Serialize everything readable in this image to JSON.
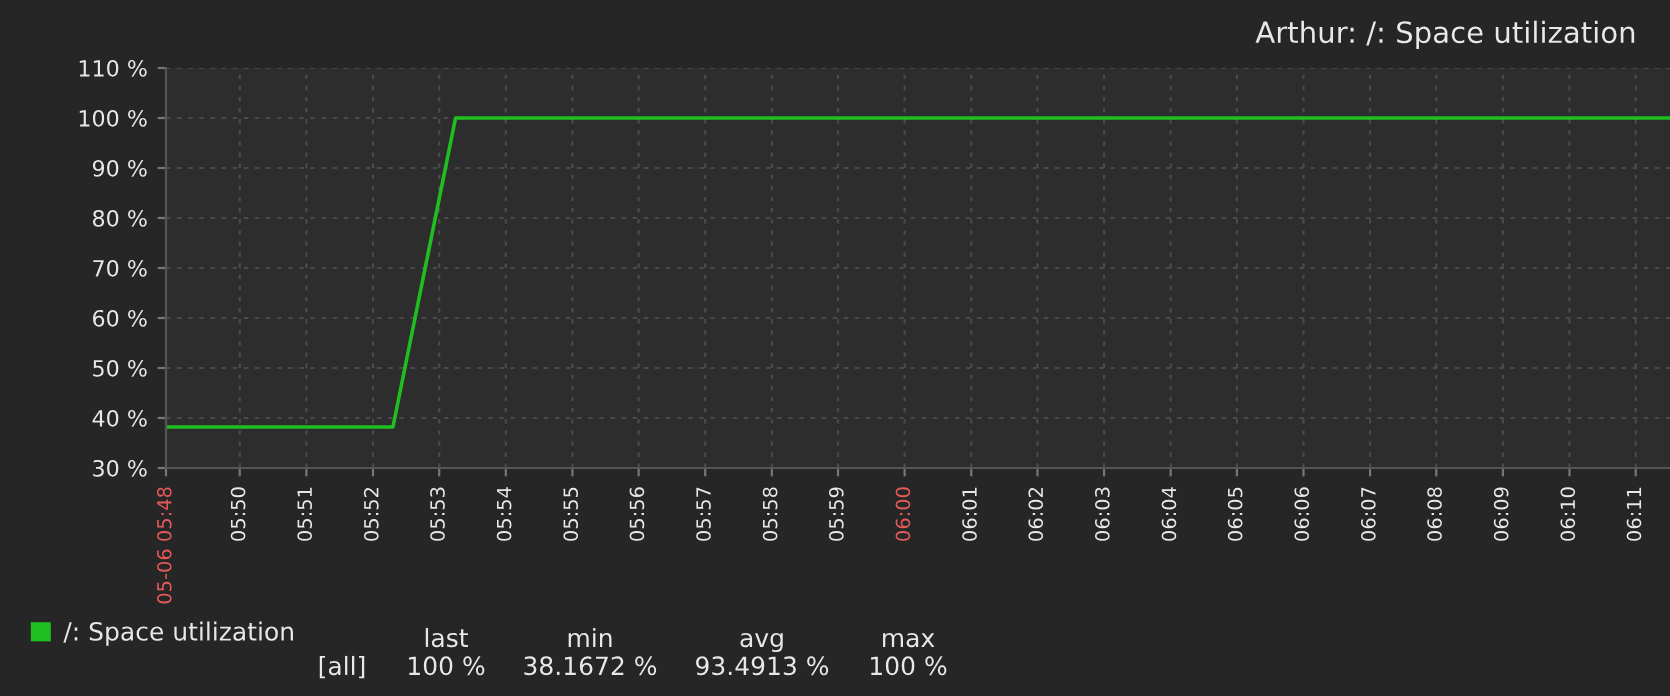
{
  "chart_data": {
    "type": "line",
    "title": "Arthur: /: Space utilization",
    "x": [
      5.8148,
      5.8717,
      5.8874,
      6.1919
    ],
    "series": [
      {
        "name": "/: Space utilization",
        "color": "#1fbf1f",
        "values": [
          38.2,
          38.2,
          100,
          100
        ]
      }
    ],
    "xlim": [
      5.8148,
      6.1919
    ],
    "xticks": [
      {
        "value": 5.8148,
        "label": "05-06 05:48"
      },
      {
        "value": 5.8333,
        "label": "05:50"
      },
      {
        "value": 5.85,
        "label": "05:51"
      },
      {
        "value": 5.8667,
        "label": "05:52"
      },
      {
        "value": 5.8833,
        "label": "05:53"
      },
      {
        "value": 5.9,
        "label": "05:54"
      },
      {
        "value": 5.9167,
        "label": "05:55"
      },
      {
        "value": 5.9333,
        "label": "05:56"
      },
      {
        "value": 5.95,
        "label": "05:57"
      },
      {
        "value": 5.9667,
        "label": "05:58"
      },
      {
        "value": 5.9833,
        "label": "05:59"
      },
      {
        "value": 6,
        "label": "06:00"
      },
      {
        "value": 6.0167,
        "label": "06:01"
      },
      {
        "value": 6.0333,
        "label": "06:02"
      },
      {
        "value": 6.05,
        "label": "06:03"
      },
      {
        "value": 6.0667,
        "label": "06:04"
      },
      {
        "value": 6.0833,
        "label": "06:05"
      },
      {
        "value": 6.1,
        "label": "06:06"
      },
      {
        "value": 6.1167,
        "label": "06:07"
      },
      {
        "value": 6.1333,
        "label": "06:08"
      },
      {
        "value": 6.15,
        "label": "06:09"
      },
      {
        "value": 6.1667,
        "label": "06:10"
      },
      {
        "value": 6.1833,
        "label": "06:11"
      }
    ],
    "ylim": [
      30,
      110
    ],
    "yticks": [
      {
        "value": 30,
        "label": "30 %"
      },
      {
        "value": 40,
        "label": "40 %"
      },
      {
        "value": 50,
        "label": "50 %"
      },
      {
        "value": 60,
        "label": "60 %"
      },
      {
        "value": 70,
        "label": "70 %"
      },
      {
        "value": 80,
        "label": "80 %"
      },
      {
        "value": 90,
        "label": "90 %"
      },
      {
        "value": 100,
        "label": "100 %"
      },
      {
        "value": 110,
        "label": "110 %"
      }
    ],
    "grid": true,
    "legend": "bottom left",
    "line_style": "solid",
    "marker": "none",
    "annotations": [
      "last",
      "min",
      "avg",
      "max",
      "[all]",
      "100 %",
      "38.1672 %",
      "93.4913 %",
      "100 %"
    ]
  }
}
